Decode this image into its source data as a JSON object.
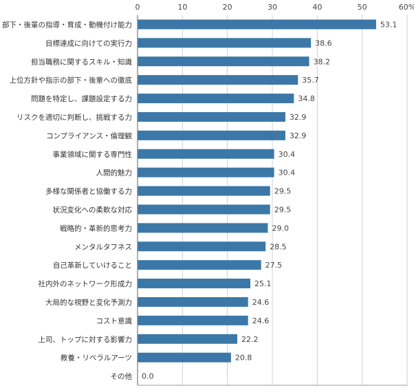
{
  "chart_data": {
    "type": "bar",
    "orientation": "horizontal",
    "categories": [
      "部下・後輩の指導・育成・動機付け能力",
      "目標達成に向けての実行力",
      "担当職務に関するスキル・知識",
      "上位方針や指示の部下・後輩への徹底",
      "問題を特定し、課題設定する力",
      "リスクを適切に判断し、挑戦する力",
      "コンプライアンス・倫理観",
      "事業領域に関する専門性",
      "人間的魅力",
      "多様な関係者と協働する力",
      "状況変化への柔軟な対応",
      "戦略的・革新的思考力",
      "メンタルタフネス",
      "自己革新していけること",
      "社内外のネットワーク形成力",
      "大局的な視野と変化予測力",
      "コスト意識",
      "上司、トップに対する影響力",
      "教養・リベラルアーツ",
      "その他"
    ],
    "values": [
      53.1,
      38.6,
      38.2,
      35.7,
      34.8,
      32.9,
      32.9,
      30.4,
      30.4,
      29.5,
      29.5,
      29.0,
      28.5,
      27.5,
      25.1,
      24.6,
      24.6,
      22.2,
      20.8,
      0.0
    ],
    "value_labels": [
      "53.1",
      "38.6",
      "38.2",
      "35.7",
      "34.8",
      "32.9",
      "32.9",
      "30.4",
      "30.4",
      "29.5",
      "29.5",
      "29.0",
      "28.5",
      "27.5",
      "25.1",
      "24.6",
      "24.6",
      "22.2",
      "20.8",
      "0.0"
    ],
    "xlim": [
      0,
      60
    ],
    "x_ticks": [
      "0",
      "10",
      "20",
      "30",
      "40",
      "50",
      "60%"
    ],
    "x_tick_values": [
      0,
      10,
      20,
      30,
      40,
      50,
      60
    ],
    "axis_position": "top",
    "grid": true,
    "bar_color": "#3b78a8",
    "title": "",
    "xlabel": "",
    "ylabel": ""
  }
}
